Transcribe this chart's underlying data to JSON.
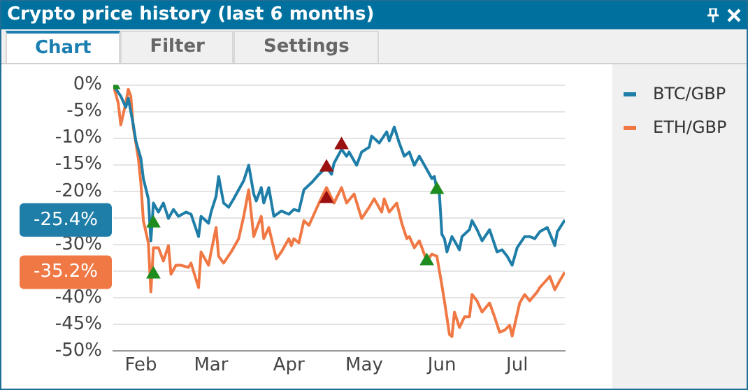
{
  "chart_data": {
    "type": "line",
    "title": "Crypto price history (last 6 months)",
    "annotations": [
      "Chart",
      "Filter",
      "Settings",
      "-25.4%",
      "-35.2%"
    ],
    "xlim": [
      "--01-21",
      "--07-20"
    ],
    "xticks": [
      {
        "value": "--02-01",
        "label": "Feb"
      },
      {
        "value": "--03-01",
        "label": "Mar"
      },
      {
        "value": "--04-01",
        "label": "Apr"
      },
      {
        "value": "--05-01",
        "label": "May"
      },
      {
        "value": "--06-01",
        "label": "Jun"
      },
      {
        "value": "--07-01",
        "label": "Jul"
      }
    ],
    "ylim": [
      -50,
      0
    ],
    "yticks": [
      {
        "value": 0,
        "label": "0%"
      },
      {
        "value": -5,
        "label": "-5%"
      },
      {
        "value": -10,
        "label": "-10%"
      },
      {
        "value": -15,
        "label": "-15%"
      },
      {
        "value": -20,
        "label": "-20%"
      },
      {
        "value": -25,
        "label": null
      },
      {
        "value": -30,
        "label": "-30%"
      },
      {
        "value": -35,
        "label": null
      },
      {
        "value": -40,
        "label": "-40%"
      },
      {
        "value": -45,
        "label": "-45%"
      },
      {
        "value": -50,
        "label": "-50%"
      }
    ],
    "grid": "y",
    "legend": "right",
    "marker": "none",
    "line_style": "solid",
    "series": [
      {
        "name": "BTC/GBP",
        "color": "#1f7ea8",
        "x": [
          "--01-21",
          "--01-24",
          "--01-26",
          "--01-27",
          "--01-29",
          "--01-30",
          "--02-01",
          "--02-02",
          "--02-04",
          "--02-05",
          "--02-06",
          "--02-08",
          "--02-10",
          "--02-12",
          "--02-14",
          "--02-16",
          "--02-19",
          "--02-21",
          "--02-24",
          "--02-25",
          "--02-28",
          "--03-01",
          "--03-03",
          "--03-04",
          "--03-06",
          "--03-08",
          "--03-10",
          "--03-12",
          "--03-14",
          "--03-16",
          "--03-18",
          "--03-19",
          "--03-21",
          "--03-22",
          "--03-24",
          "--03-26",
          "--03-29",
          "--04-01",
          "--04-03",
          "--04-05",
          "--04-07",
          "--04-10",
          "--04-13",
          "--04-16",
          "--04-18",
          "--04-19",
          "--04-22",
          "--04-24",
          "--04-25",
          "--04-28",
          "--04-30",
          "--05-03",
          "--05-04",
          "--05-07",
          "--05-10",
          "--05-11",
          "--05-13",
          "--05-15",
          "--05-17",
          "--05-19",
          "--05-21",
          "--05-23",
          "--05-26",
          "--05-28",
          "--05-29",
          "--05-30",
          "--05-31",
          "--06-01",
          "--06-02",
          "--06-03",
          "--06-05",
          "--06-06",
          "--06-08",
          "--06-09",
          "--06-12",
          "--06-13",
          "--06-15",
          "--06-17",
          "--06-20",
          "--06-23",
          "--06-25",
          "--06-27",
          "--06-29",
          "--07-01",
          "--07-04",
          "--07-06",
          "--07-08",
          "--07-10",
          "--07-13",
          "--07-16",
          "--07-17",
          "--07-20"
        ],
        "values": [
          0,
          -2.1,
          -4.2,
          -2.5,
          -7.5,
          -10.5,
          -13.8,
          -17.6,
          -21.4,
          -29.3,
          -22.2,
          -23.9,
          -22.2,
          -25.1,
          -23.4,
          -24.7,
          -23.9,
          -24.3,
          -28.5,
          -24.7,
          -26,
          -23.9,
          -20.9,
          -17.2,
          -22.2,
          -23,
          -21.4,
          -19.7,
          -18,
          -15.1,
          -20.5,
          -21.8,
          -19.3,
          -22.2,
          -19.3,
          -24.7,
          -23.7,
          -24.3,
          -23.4,
          -23.7,
          -19.7,
          -18.4,
          -16.8,
          -15.5,
          -16.8,
          -14.7,
          -12.1,
          -13.4,
          -12.6,
          -15.1,
          -12.6,
          -11.7,
          -9.6,
          -10.9,
          -8.8,
          -10.5,
          -7.9,
          -10.9,
          -13.4,
          -12.6,
          -15.1,
          -13.4,
          -15.9,
          -17.6,
          -17.2,
          -19.7,
          -20.5,
          -28.1,
          -28.9,
          -31.4,
          -28.5,
          -29.3,
          -31,
          -28.5,
          -27.2,
          -25.5,
          -27.2,
          -29.3,
          -27.2,
          -31.4,
          -31,
          -32.2,
          -33.9,
          -30.6,
          -28.5,
          -28.5,
          -28.9,
          -27.6,
          -26.8,
          -30.2,
          -27.6,
          -25.4
        ]
      },
      {
        "name": "ETH/GBP",
        "color": "#f07844",
        "x": [
          "--01-21",
          "--01-23",
          "--01-24",
          "--01-26",
          "--01-27",
          "--01-28",
          "--01-29",
          "--01-31",
          "--02-01",
          "--02-02",
          "--02-04",
          "--02-05",
          "--02-06",
          "--02-08",
          "--02-10",
          "--02-12",
          "--02-13",
          "--02-15",
          "--02-17",
          "--02-20",
          "--02-21",
          "--02-24",
          "--02-25",
          "--02-28",
          "--03-01",
          "--03-03",
          "--03-04",
          "--03-06",
          "--03-09",
          "--03-12",
          "--03-14",
          "--03-16",
          "--03-18",
          "--03-19",
          "--03-21",
          "--03-22",
          "--03-24",
          "--03-27",
          "--03-29",
          "--04-01",
          "--04-02",
          "--04-03",
          "--04-05",
          "--04-07",
          "--04-09",
          "--04-13",
          "--04-16",
          "--04-19",
          "--04-22",
          "--04-24",
          "--04-27",
          "--04-30",
          "--05-03",
          "--05-05",
          "--05-08",
          "--05-09",
          "--05-11",
          "--05-14",
          "--05-16",
          "--05-18",
          "--05-19",
          "--05-21",
          "--05-23",
          "--05-26",
          "--05-28",
          "--05-30",
          "--06-01",
          "--06-02",
          "--06-04",
          "--06-05",
          "--06-06",
          "--06-08",
          "--06-10",
          "--06-12",
          "--06-13",
          "--06-15",
          "--06-17",
          "--06-20",
          "--06-22",
          "--06-24",
          "--06-26",
          "--06-28",
          "--06-29",
          "--07-02",
          "--07-04",
          "--07-06",
          "--07-09",
          "--07-10",
          "--07-14",
          "--07-16",
          "--07-18",
          "--07-20"
        ],
        "values": [
          0,
          -3.4,
          -7.5,
          -3.4,
          -0.8,
          -2.1,
          -8,
          -13.8,
          -18.4,
          -25.5,
          -29.7,
          -38.9,
          -30.6,
          -30.6,
          -33.1,
          -30.2,
          -35.6,
          -33.9,
          -33.9,
          -34.3,
          -33.5,
          -38.1,
          -31.4,
          -33.9,
          -31.4,
          -26.8,
          -32.2,
          -33.5,
          -31.4,
          -28.9,
          -24.7,
          -19.7,
          -28.5,
          -27.2,
          -24.7,
          -28.9,
          -26.8,
          -32.7,
          -31.4,
          -28.9,
          -30.2,
          -28.9,
          -29.7,
          -25.5,
          -26.4,
          -22.2,
          -19.3,
          -22.2,
          -19.3,
          -22.2,
          -20.5,
          -25.1,
          -23,
          -21.4,
          -23.9,
          -21.4,
          -23.9,
          -22.2,
          -26,
          -28.9,
          -28.5,
          -30.6,
          -29.3,
          -33.1,
          -31.8,
          -32.2,
          -37.7,
          -40.6,
          -46.9,
          -47.3,
          -42.7,
          -45.6,
          -43.6,
          -43.6,
          -39.4,
          -40.6,
          -42.7,
          -41,
          -43.6,
          -46.5,
          -46.1,
          -45.2,
          -47.2,
          -41,
          -39.4,
          -40.6,
          -38.9,
          -38.1,
          -36,
          -38.5,
          -36.8,
          -35.2
        ]
      },
      {
        "type": "scatter",
        "marker": "triangle",
        "color": "#1e8c1e",
        "x": [
          "--01-21",
          "--02-06",
          "--02-06",
          "--05-26",
          "--05-30"
        ],
        "values": [
          0,
          -26,
          -35.6,
          -33.1,
          -19.7
        ]
      },
      {
        "type": "scatter",
        "marker": "triangle",
        "color": "#9b1010",
        "x": [
          "--04-16",
          "--04-16",
          "--04-22"
        ],
        "values": [
          -15.5,
          -21.4,
          -11.3
        ]
      }
    ]
  }
}
